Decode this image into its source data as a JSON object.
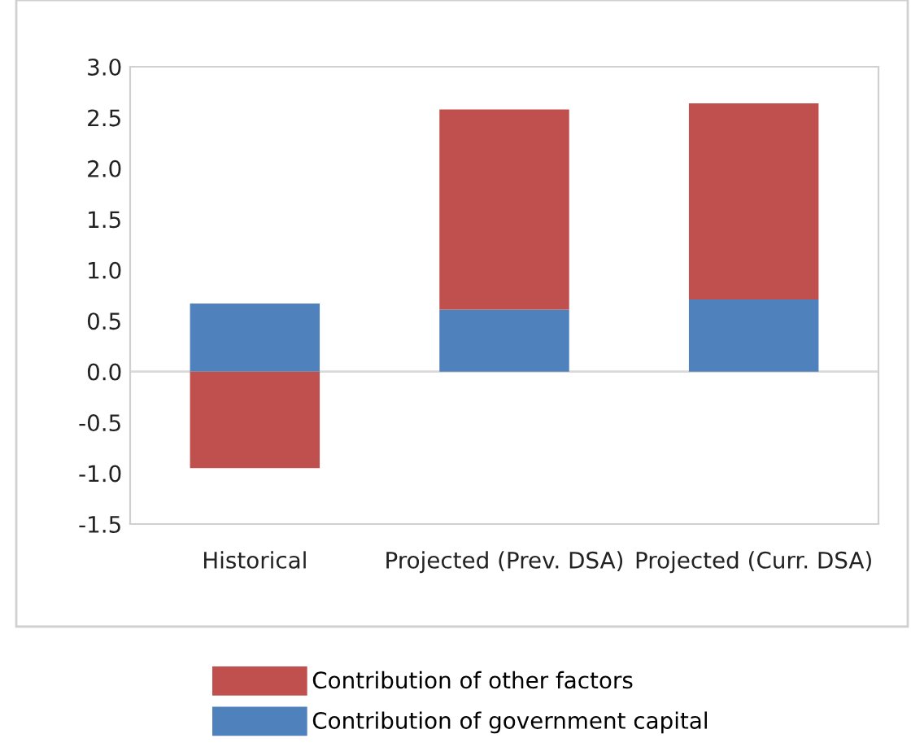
{
  "chart_data": {
    "type": "bar",
    "stacked": true,
    "categories": [
      "Historical",
      "Projected (Prev. DSA)",
      "Projected (Curr. DSA)"
    ],
    "series": [
      {
        "name": "Contribution of government capital",
        "color": "#4f81bd",
        "values": [
          0.67,
          0.61,
          0.71
        ]
      },
      {
        "name": "Contribution of other factors",
        "color": "#c0504d",
        "values": [
          -0.95,
          1.97,
          1.93
        ]
      }
    ],
    "ylim": [
      -1.5,
      3.0
    ],
    "yticks": [
      {
        "value": -1.5,
        "label": "-1.5"
      },
      {
        "value": -1,
        "label": "-1.0"
      },
      {
        "value": -0.5,
        "label": "-0.5"
      },
      {
        "value": 0,
        "label": "0.0"
      },
      {
        "value": 0.5,
        "label": "0.5"
      },
      {
        "value": 1,
        "label": "1.0"
      },
      {
        "value": 1.5,
        "label": "1.5"
      },
      {
        "value": 2,
        "label": "2.0"
      },
      {
        "value": 2.5,
        "label": "2.5"
      },
      {
        "value": 3,
        "label": "3.0"
      }
    ],
    "ref_lines": [
      {
        "axis": "y",
        "value": 0,
        "color": "#d9d9d9"
      }
    ],
    "legend": "bottom"
  }
}
